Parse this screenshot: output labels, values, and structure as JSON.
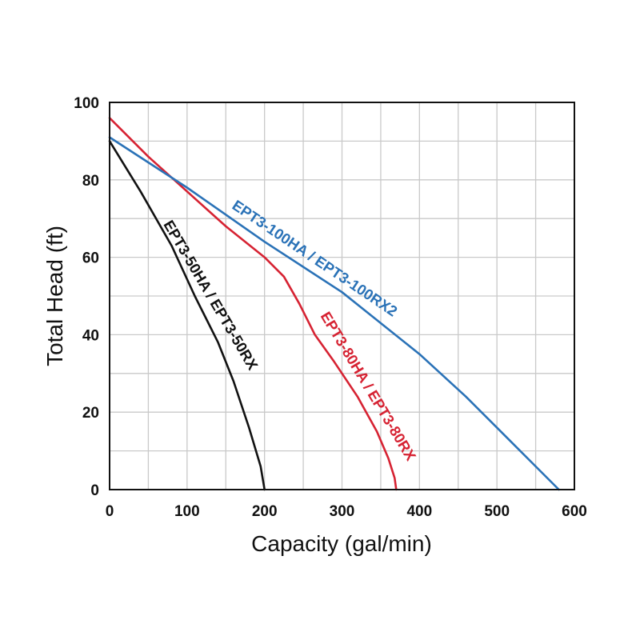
{
  "chart_data": {
    "type": "line",
    "xlabel": "Capacity (gal/min)",
    "ylabel": "Total Head (ft)",
    "xlim": [
      0,
      600
    ],
    "ylim": [
      0,
      100
    ],
    "x_ticks": [
      0,
      100,
      200,
      300,
      400,
      500,
      600
    ],
    "y_ticks": [
      0,
      20,
      40,
      60,
      80,
      100
    ],
    "x_tick_labels": [
      "0",
      "100",
      "200",
      "300",
      "400",
      "500",
      "600"
    ],
    "y_tick_labels": [
      "0",
      "20",
      "40",
      "60",
      "80",
      "100"
    ],
    "grid": true,
    "legend": "inline labels along curves",
    "series": [
      {
        "name": "EPT3-50HA / EPT3-50RX",
        "color": "#111111",
        "points": [
          [
            0,
            90
          ],
          [
            40,
            77
          ],
          [
            80,
            63
          ],
          [
            110,
            50
          ],
          [
            140,
            38
          ],
          [
            160,
            28
          ],
          [
            180,
            16
          ],
          [
            195,
            6
          ],
          [
            200,
            0
          ]
        ]
      },
      {
        "name": "EPT3-80HA / EPT3-80RX",
        "color": "#d62232",
        "points": [
          [
            0,
            96
          ],
          [
            50,
            86
          ],
          [
            100,
            77
          ],
          [
            150,
            68
          ],
          [
            200,
            60
          ],
          [
            225,
            55
          ],
          [
            245,
            48
          ],
          [
            265,
            40
          ],
          [
            290,
            33
          ],
          [
            320,
            24
          ],
          [
            345,
            15
          ],
          [
            360,
            8
          ],
          [
            368,
            3
          ],
          [
            370,
            0
          ]
        ]
      },
      {
        "name": "EPT3-100HA / EPT3-100RX2",
        "color": "#2a72b7",
        "points": [
          [
            0,
            91
          ],
          [
            100,
            78
          ],
          [
            200,
            64
          ],
          [
            300,
            51
          ],
          [
            400,
            35
          ],
          [
            460,
            24
          ],
          [
            500,
            16
          ],
          [
            550,
            6
          ],
          [
            580,
            0
          ]
        ]
      }
    ]
  }
}
